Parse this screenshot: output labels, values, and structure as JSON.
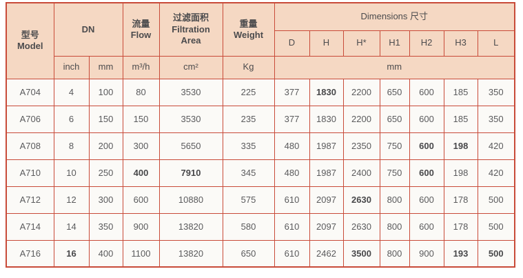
{
  "colors": {
    "border": "#c84a38",
    "header_bg": "#f5d8c3",
    "row_bg": "#fbfaf7",
    "header_text": "#4b4b4d",
    "cell_text": "#5a5a5c"
  },
  "table": {
    "header": {
      "model_zh": "型号",
      "model_en": "Model",
      "dn": "DN",
      "flow_zh": "流量",
      "flow_en": "Flow",
      "filtration_zh": "过滤面积",
      "filtration_en": "Filtration\nArea",
      "weight_zh": "重量",
      "weight_en": "Weight",
      "dimensions": "Dimensions 尺寸",
      "dim_cols": [
        "D",
        "H",
        "H*",
        "H1",
        "H2",
        "H3",
        "L"
      ],
      "unit_inch": "inch",
      "unit_mm": "mm",
      "unit_flow": "m³/h",
      "unit_area": "cm²",
      "unit_weight": "Kg",
      "unit_dims": "mm"
    },
    "rows": [
      {
        "cells": [
          "A704",
          "4",
          "100",
          "80",
          "3530",
          "225",
          "377",
          "1830",
          "2200",
          "650",
          "600",
          "185",
          "350"
        ],
        "bold": [
          7
        ]
      },
      {
        "cells": [
          "A706",
          "6",
          "150",
          "150",
          "3530",
          "235",
          "377",
          "1830",
          "2200",
          "650",
          "600",
          "185",
          "350"
        ],
        "bold": []
      },
      {
        "cells": [
          "A708",
          "8",
          "200",
          "300",
          "5650",
          "335",
          "480",
          "1987",
          "2350",
          "750",
          "600",
          "198",
          "420"
        ],
        "bold": [
          10,
          11
        ]
      },
      {
        "cells": [
          "A710",
          "10",
          "250",
          "400",
          "7910",
          "345",
          "480",
          "1987",
          "2400",
          "750",
          "600",
          "198",
          "420"
        ],
        "bold": [
          3,
          4,
          10
        ]
      },
      {
        "cells": [
          "A712",
          "12",
          "300",
          "600",
          "10880",
          "575",
          "610",
          "2097",
          "2630",
          "800",
          "600",
          "178",
          "500"
        ],
        "bold": [
          8
        ]
      },
      {
        "cells": [
          "A714",
          "14",
          "350",
          "900",
          "13820",
          "580",
          "610",
          "2097",
          "2630",
          "800",
          "600",
          "178",
          "500"
        ],
        "bold": []
      },
      {
        "cells": [
          "A716",
          "16",
          "400",
          "1100",
          "13820",
          "650",
          "610",
          "2462",
          "3500",
          "800",
          "900",
          "193",
          "500"
        ],
        "bold": [
          1,
          8,
          11,
          12
        ]
      }
    ]
  }
}
